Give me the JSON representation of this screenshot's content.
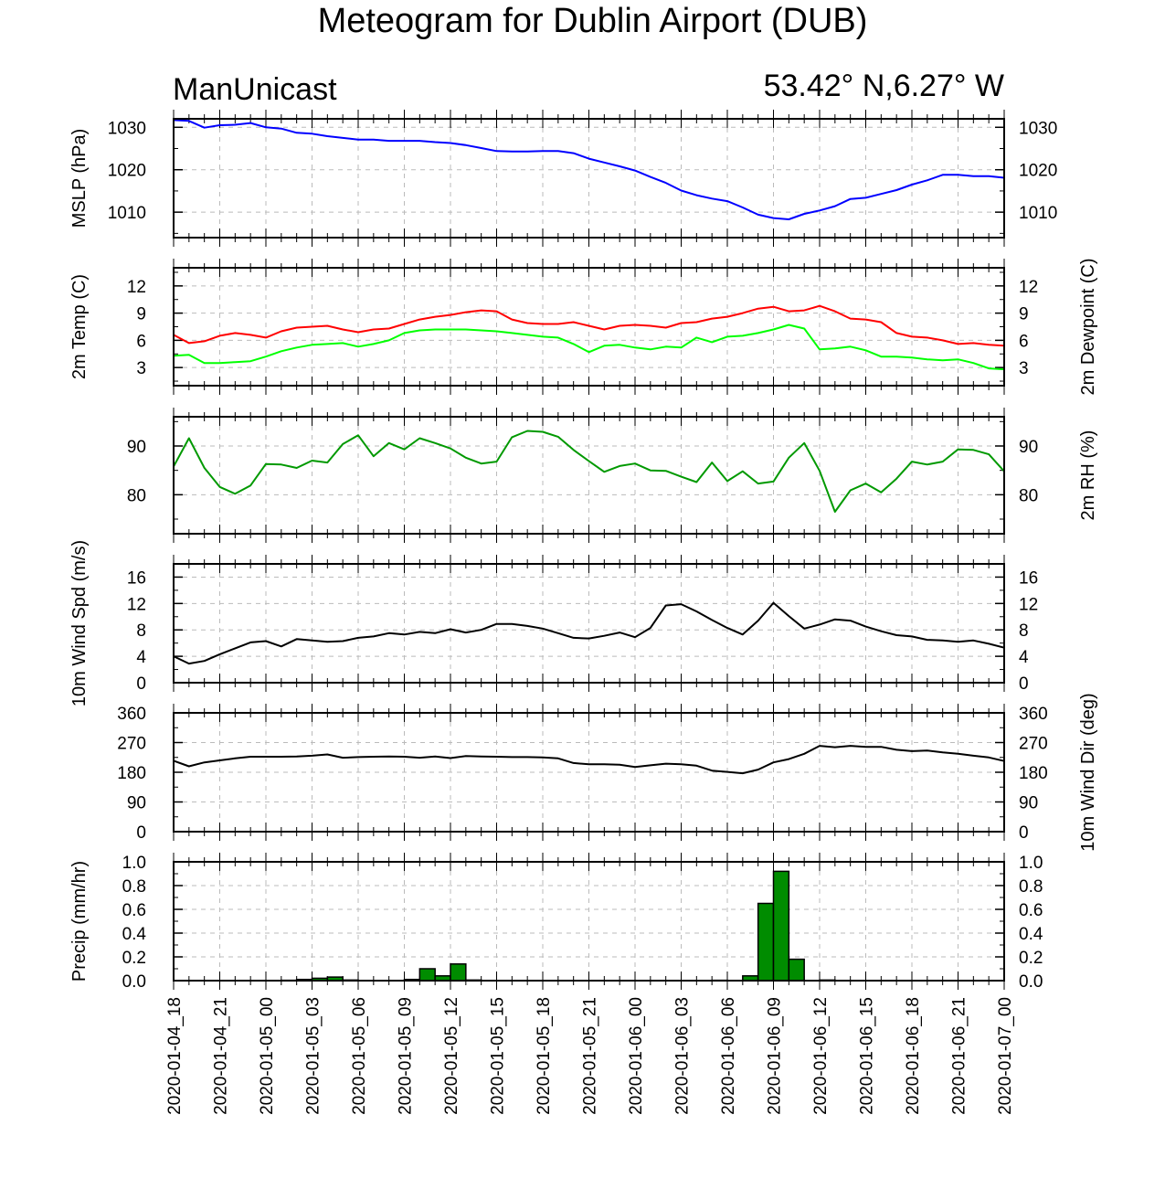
{
  "title": "Meteogram for Dublin Airport (DUB)",
  "subtitle_left": "ManUnicast",
  "subtitle_right": "53.42° N,6.27° W",
  "chart_data": [
    {
      "type": "line",
      "ylabel": "MSLP (hPa)",
      "ylabel_right": "",
      "ylim": [
        1004,
        1032
      ],
      "yticks": [
        1010,
        1020,
        1030
      ],
      "yticklabels": [
        "1010",
        "1020",
        "1030"
      ],
      "series": [
        {
          "color": "#0000ff",
          "values": [
            1031.7,
            1031.5,
            1029.9,
            1030.5,
            1030.6,
            1031.0,
            1030.0,
            1029.7,
            1028.7,
            1028.5,
            1027.9,
            1027.5,
            1027.1,
            1027.1,
            1026.8,
            1026.8,
            1026.8,
            1026.5,
            1026.3,
            1025.8,
            1025.1,
            1024.4,
            1024.3,
            1024.3,
            1024.4,
            1024.4,
            1023.9,
            1022.6,
            1021.7,
            1020.8,
            1019.8,
            1018.3,
            1016.9,
            1015.1,
            1014.0,
            1013.2,
            1012.6,
            1011.1,
            1009.4,
            1008.6,
            1008.3,
            1009.6,
            1010.4,
            1011.4,
            1013.1,
            1013.4,
            1014.3,
            1015.2,
            1016.5,
            1017.5,
            1018.8,
            1018.8,
            1018.5,
            1018.5,
            1018.1
          ]
        }
      ]
    },
    {
      "type": "line",
      "ylabel": "2m Temp (C)",
      "ylabel_right": "2m Dewpoint (C)",
      "ylim": [
        1,
        14
      ],
      "yticks": [
        3,
        6,
        9,
        12
      ],
      "yticklabels": [
        "3",
        "6",
        "9",
        "12"
      ],
      "series": [
        {
          "color": "#ff0000",
          "values": [
            6.6,
            5.7,
            5.9,
            6.5,
            6.8,
            6.6,
            6.3,
            7.0,
            7.4,
            7.5,
            7.6,
            7.2,
            6.9,
            7.2,
            7.3,
            7.8,
            8.3,
            8.6,
            8.8,
            9.1,
            9.3,
            9.2,
            8.3,
            7.9,
            7.8,
            7.8,
            8.0,
            7.6,
            7.2,
            7.6,
            7.7,
            7.6,
            7.4,
            7.9,
            8.0,
            8.4,
            8.6,
            9.0,
            9.5,
            9.7,
            9.2,
            9.3,
            9.8,
            9.2,
            8.4,
            8.3,
            8.0,
            6.8,
            6.4,
            6.3,
            6.0,
            5.6,
            5.7,
            5.5,
            5.4
          ]
        },
        {
          "color": "#00ff00",
          "values": [
            4.3,
            4.4,
            3.5,
            3.5,
            3.6,
            3.7,
            4.2,
            4.8,
            5.2,
            5.5,
            5.6,
            5.7,
            5.3,
            5.6,
            6.0,
            6.8,
            7.1,
            7.2,
            7.2,
            7.2,
            7.1,
            7.0,
            6.8,
            6.6,
            6.4,
            6.3,
            5.6,
            4.7,
            5.4,
            5.5,
            5.2,
            5.0,
            5.3,
            5.2,
            6.3,
            5.8,
            6.4,
            6.5,
            6.8,
            7.2,
            7.7,
            7.3,
            5.0,
            5.1,
            5.3,
            4.9,
            4.2,
            4.2,
            4.1,
            3.9,
            3.8,
            3.9,
            3.5,
            2.9,
            2.8
          ]
        }
      ]
    },
    {
      "type": "line",
      "ylabel": "",
      "ylabel_right": "2m RH (%)",
      "ylim": [
        72,
        96
      ],
      "yticks": [
        80,
        90
      ],
      "yticklabels": [
        "80",
        "90"
      ],
      "series": [
        {
          "color": "#009900",
          "values": [
            85.8,
            91.6,
            85.5,
            81.6,
            80.2,
            81.9,
            86.3,
            86.2,
            85.5,
            87.0,
            86.6,
            90.4,
            92.2,
            87.9,
            90.6,
            89.3,
            91.6,
            90.6,
            89.5,
            87.6,
            86.4,
            86.8,
            91.8,
            93.1,
            92.9,
            91.9,
            89.2,
            86.9,
            84.7,
            85.9,
            86.4,
            85.0,
            84.9,
            83.7,
            82.6,
            86.6,
            82.8,
            84.8,
            82.3,
            82.7,
            87.6,
            90.6,
            84.9,
            76.5,
            80.9,
            82.3,
            80.5,
            83.3,
            86.8,
            86.2,
            86.8,
            89.3,
            89.2,
            88.3,
            84.8
          ]
        }
      ]
    },
    {
      "type": "line",
      "ylabel": "10m Wind Spd (m/s)",
      "ylabel_right": "",
      "ylim": [
        0,
        18
      ],
      "yticks": [
        0,
        4,
        8,
        12,
        16
      ],
      "yticklabels": [
        "0",
        "4",
        "8",
        "12",
        "16"
      ],
      "series": [
        {
          "color": "#000000",
          "values": [
            4.0,
            2.9,
            3.3,
            4.3,
            5.2,
            6.1,
            6.3,
            5.5,
            6.6,
            6.4,
            6.2,
            6.3,
            6.8,
            7.0,
            7.5,
            7.3,
            7.7,
            7.5,
            8.1,
            7.6,
            8.0,
            8.9,
            8.9,
            8.6,
            8.2,
            7.5,
            6.8,
            6.7,
            7.1,
            7.6,
            6.9,
            8.3,
            11.7,
            11.9,
            10.8,
            9.5,
            8.3,
            7.3,
            9.4,
            12.1,
            10.1,
            8.2,
            8.8,
            9.6,
            9.4,
            8.5,
            7.8,
            7.2,
            7.0,
            6.5,
            6.4,
            6.2,
            6.4,
            5.9,
            5.3
          ]
        }
      ]
    },
    {
      "type": "line",
      "ylabel": "",
      "ylabel_right": "10m Wind Dir (deg)",
      "ylim": [
        0,
        360
      ],
      "yticks": [
        0,
        90,
        180,
        270,
        360
      ],
      "yticklabels": [
        "0",
        "90",
        "180",
        "270",
        "360"
      ],
      "series": [
        {
          "color": "#000000",
          "values": [
            215,
            198,
            210,
            216,
            222,
            227,
            227,
            227,
            228,
            230,
            234,
            224,
            226,
            227,
            228,
            227,
            224,
            228,
            223,
            229,
            228,
            227,
            226,
            226,
            225,
            222,
            208,
            204,
            204,
            203,
            196,
            201,
            206,
            204,
            200,
            185,
            181,
            177,
            188,
            210,
            220,
            236,
            260,
            256,
            260,
            257,
            257,
            248,
            244,
            246,
            240,
            236,
            230,
            225,
            214
          ]
        }
      ]
    },
    {
      "type": "bar",
      "ylabel": "Precip (mm/hr)",
      "ylabel_right": "",
      "ylim": [
        0,
        1.0
      ],
      "yticks": [
        0,
        0.2,
        0.4,
        0.6,
        0.8,
        1.0
      ],
      "yticklabels": [
        "0.0",
        "0.2",
        "0.4",
        "0.6",
        "0.8",
        "1.0"
      ],
      "series": [
        {
          "color": "#008c00",
          "values": [
            0,
            0,
            0,
            0,
            0,
            0,
            0,
            0.003,
            0.01,
            0.02,
            0.03,
            0.005,
            0,
            0,
            0,
            0.01,
            0.1,
            0.04,
            0.14,
            0.005,
            0,
            0,
            0,
            0,
            0,
            0,
            0,
            0,
            0,
            0,
            0,
            0,
            0,
            0,
            0,
            0.003,
            0.002,
            0.04,
            0.65,
            0.92,
            0.18,
            0,
            0.005,
            0,
            0,
            0,
            0,
            0,
            0,
            0,
            0,
            0,
            0,
            0,
            0
          ]
        }
      ]
    }
  ],
  "xaxis": {
    "ticklabels": [
      "2020-01-04_18",
      "2020-01-04_21",
      "2020-01-05_00",
      "2020-01-05_03",
      "2020-01-05_06",
      "2020-01-05_09",
      "2020-01-05_12",
      "2020-01-05_15",
      "2020-01-05_18",
      "2020-01-05_21",
      "2020-01-06_00",
      "2020-01-06_03",
      "2020-01-06_06",
      "2020-01-06_09",
      "2020-01-06_12",
      "2020-01-06_15",
      "2020-01-06_18",
      "2020-01-06_21",
      "2020-01-07_00"
    ],
    "grid": true
  }
}
